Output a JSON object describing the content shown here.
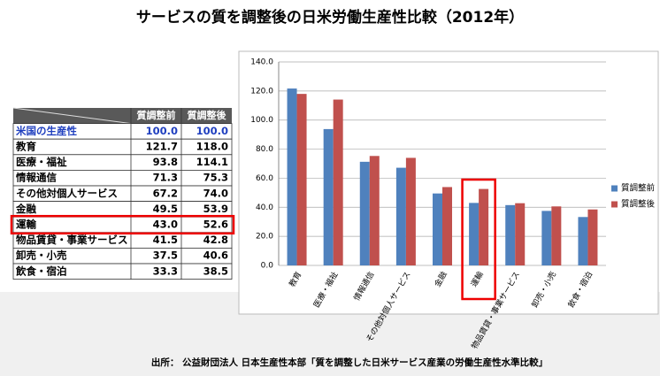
{
  "title": "サービスの質を調整後の日米労働生産性比較（2012年）",
  "source": "出所： 公益財団法人 日本生産性本部「質を調整した日米サービス産業の労働生産性水準比較」",
  "table": {
    "header": [
      "質調整前",
      "質調整後"
    ],
    "rows": [
      [
        "米国の生産性",
        "100.0",
        "100.0"
      ],
      [
        "教育",
        "121.7",
        "118.0"
      ],
      [
        "医療・福祉",
        "93.8",
        "114.1"
      ],
      [
        "情報通信",
        "71.3",
        "75.3"
      ],
      [
        "その他対個人サービス",
        "67.2",
        "74.0"
      ],
      [
        "金融",
        "49.5",
        "53.9"
      ],
      [
        "運輸",
        "43.0",
        "52.6"
      ],
      [
        "物品賃貸・事業サービス",
        "41.5",
        "42.8"
      ],
      [
        "卸売・小売",
        "37.5",
        "40.6"
      ],
      [
        "飲食・宿泊",
        "33.3",
        "38.5"
      ]
    ]
  },
  "chart_data": {
    "type": "bar",
    "categories": [
      "教育",
      "医療・福祉",
      "情報通信",
      "その他対個人サービス",
      "金融",
      "運輸",
      "物品賃貸・事業サービス",
      "卸売・小売",
      "飲食・宿泊"
    ],
    "series": [
      {
        "name": "質調整前",
        "color": "#4f81bd",
        "values": [
          121.7,
          93.8,
          71.3,
          67.2,
          49.5,
          43.0,
          41.5,
          37.5,
          33.3
        ]
      },
      {
        "name": "質調整後",
        "color": "#c0504d",
        "values": [
          118.0,
          114.1,
          75.3,
          74.0,
          53.9,
          52.6,
          42.8,
          40.6,
          38.5
        ]
      }
    ],
    "ylim": [
      0,
      140
    ],
    "yticks": [
      {
        "value": 0,
        "label": "0.0"
      },
      {
        "value": 20,
        "label": "20.0"
      },
      {
        "value": 40,
        "label": "40.0"
      },
      {
        "value": 60,
        "label": "60.0"
      },
      {
        "value": 80,
        "label": "80.0"
      },
      {
        "value": 100,
        "label": "100.0"
      },
      {
        "value": 120,
        "label": "120.0"
      },
      {
        "value": 140,
        "label": "140.0"
      }
    ],
    "grid": true,
    "legend": "right"
  }
}
